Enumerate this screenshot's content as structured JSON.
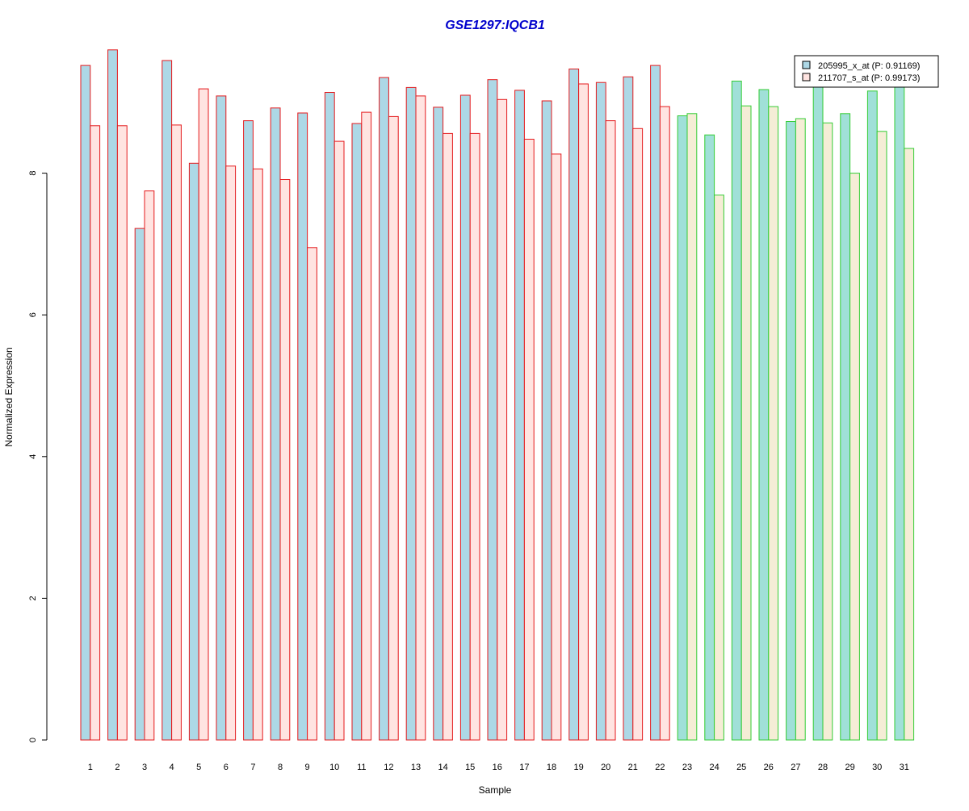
{
  "chart_data": {
    "type": "bar",
    "title": "GSE1297:IQCB1",
    "title_color": "#0000CC",
    "xlabel": "Sample",
    "ylabel": "Normalized Expression",
    "ylim": [
      0,
      9.85
    ],
    "yticks": [
      0,
      2,
      4,
      6,
      8
    ],
    "grid": false,
    "legend_position": "top-right",
    "categories": [
      "1",
      "2",
      "3",
      "4",
      "5",
      "6",
      "7",
      "8",
      "9",
      "10",
      "11",
      "12",
      "13",
      "14",
      "15",
      "16",
      "17",
      "18",
      "19",
      "20",
      "21",
      "22",
      "23",
      "24",
      "25",
      "26",
      "27",
      "28",
      "29",
      "30",
      "31"
    ],
    "group_outline_colors": {
      "1-22": "#E41A1C",
      "23-31": "#33CC33"
    },
    "series": [
      {
        "name": "205995_x_at (P: 0.91169)",
        "fill": "#ADD8E6",
        "fill_group2": "#A0E0D8",
        "values": [
          9.52,
          9.74,
          7.22,
          9.59,
          8.14,
          9.09,
          8.74,
          8.92,
          8.85,
          9.14,
          8.7,
          9.35,
          9.21,
          8.93,
          9.1,
          9.32,
          9.17,
          9.02,
          9.47,
          9.28,
          9.36,
          9.52,
          8.81,
          8.54,
          9.3,
          9.18,
          8.73,
          9.22,
          8.84,
          9.16,
          9.22
        ]
      },
      {
        "name": "211707_s_at (P: 0.99173)",
        "fill": "#FFE4E1",
        "fill_group2": "#F5EDD6",
        "values": [
          8.67,
          8.67,
          7.75,
          8.68,
          9.19,
          8.1,
          8.06,
          7.91,
          6.95,
          8.45,
          8.86,
          8.8,
          9.09,
          8.56,
          8.56,
          9.04,
          8.48,
          8.27,
          9.26,
          8.74,
          8.63,
          8.94,
          8.84,
          7.69,
          8.95,
          8.94,
          8.77,
          8.71,
          8.0,
          8.59,
          8.35
        ]
      }
    ]
  }
}
